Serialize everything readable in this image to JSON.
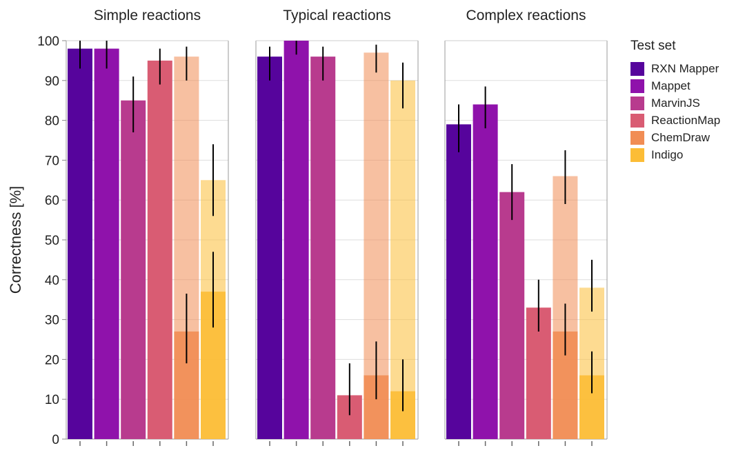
{
  "chart_data": {
    "type": "bar",
    "ylabel": "Correctness [%]",
    "ylim": [
      0,
      100
    ],
    "yticks": [
      0,
      10,
      20,
      30,
      40,
      50,
      60,
      70,
      80,
      90,
      100
    ],
    "grid": true,
    "legend_position": "right",
    "series": [
      {
        "name": "RXN Mapper",
        "color": "#56049c"
      },
      {
        "name": "Mappet",
        "color": "#8f12ab"
      },
      {
        "name": "MarvinJS",
        "color": "#b83b8e"
      },
      {
        "name": "ReactionMap",
        "color": "#d95c73"
      },
      {
        "name": "ChemDraw",
        "color": "#f18d54"
      },
      {
        "name": "Indigo",
        "color": "#fcbd36"
      }
    ],
    "panels": [
      {
        "title": "Simple reactions",
        "values": [
          98,
          98,
          85,
          95,
          96,
          65
        ],
        "err_low": [
          93,
          93,
          77,
          89,
          90,
          56
        ],
        "err_high": [
          100,
          100,
          91,
          98,
          98.5,
          74
        ],
        "inner_values": [
          null,
          null,
          null,
          null,
          27,
          37
        ],
        "inner_err_low": [
          null,
          null,
          null,
          null,
          19,
          28
        ],
        "inner_err_high": [
          null,
          null,
          null,
          null,
          36.5,
          47
        ]
      },
      {
        "title": "Typical reactions",
        "values": [
          96,
          100,
          96,
          11,
          97,
          90
        ],
        "err_low": [
          90,
          96.5,
          90,
          6,
          92,
          83
        ],
        "err_high": [
          98.5,
          100,
          98.5,
          19,
          99,
          94.5
        ],
        "inner_values": [
          null,
          null,
          null,
          null,
          16,
          12
        ],
        "inner_err_low": [
          null,
          null,
          null,
          null,
          10,
          7
        ],
        "inner_err_high": [
          null,
          null,
          null,
          null,
          24.5,
          20
        ]
      },
      {
        "title": "Complex reactions",
        "values": [
          79,
          84,
          62,
          33,
          66,
          38
        ],
        "err_low": [
          72,
          78,
          55,
          27,
          59,
          32
        ],
        "err_high": [
          84,
          88.5,
          69,
          40,
          72.5,
          45
        ],
        "inner_values": [
          null,
          null,
          null,
          null,
          27,
          16
        ],
        "inner_err_low": [
          null,
          null,
          null,
          null,
          21,
          11.5
        ],
        "inner_err_high": [
          null,
          null,
          null,
          null,
          34,
          22
        ]
      }
    ]
  },
  "legend": {
    "title": "Test set",
    "items": [
      "RXN Mapper",
      "Mappet",
      "MarvinJS",
      "ReactionMap",
      "ChemDraw",
      "Indigo"
    ]
  }
}
